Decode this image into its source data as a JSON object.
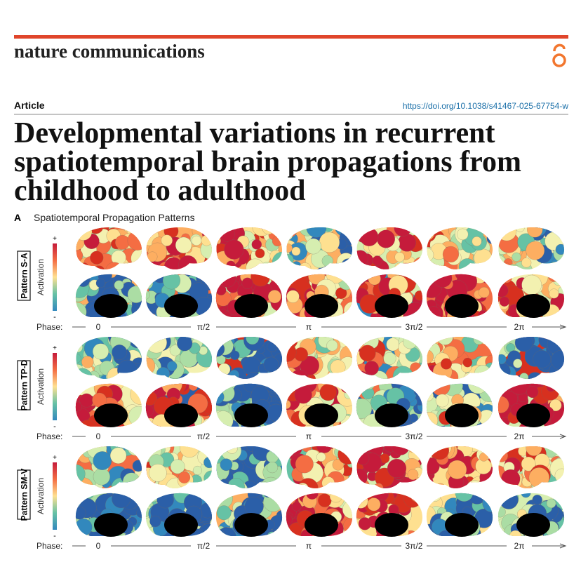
{
  "header": {
    "journal": "nature communications",
    "article_type": "Article",
    "doi": "https://doi.org/10.1038/s41467-025-67754-w"
  },
  "title_lines": [
    "Developmental variations in recurrent",
    "spatiotemporal brain propagations from",
    "childhood to adulthood"
  ],
  "figure": {
    "panel_label": "A",
    "panel_title": "Spatiotemporal Propagation Patterns",
    "colorbar": {
      "max": "+",
      "min": "-",
      "label": "Activation"
    },
    "phase_label": "Phase:",
    "phase_ticks": [
      "0",
      "π/2",
      "π",
      "3π/2",
      "2π"
    ],
    "patterns": [
      "Pattern S-A",
      "Pattern TP-D",
      "Pattern SM-V"
    ]
  }
}
